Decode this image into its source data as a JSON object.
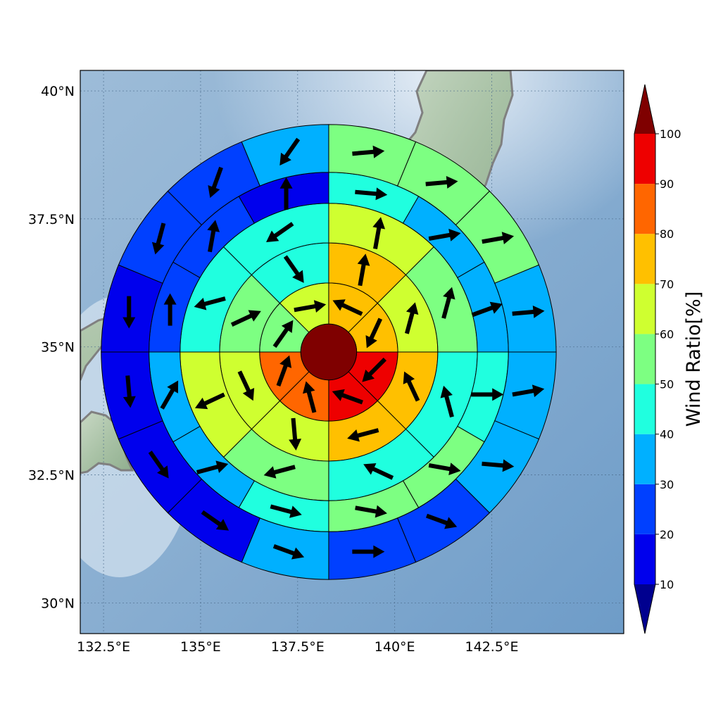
{
  "chart_data": {
    "type": "heatmap",
    "projection": "map",
    "x_ticks": [
      "132.5°E",
      "135°E",
      "137.5°E",
      "140°E",
      "142.5°E"
    ],
    "x_tick_values": [
      132.5,
      135,
      137.5,
      140,
      142.5
    ],
    "y_ticks": [
      "40°N",
      "37.5°N",
      "35°N",
      "32.5°N",
      "30°N"
    ],
    "y_tick_values": [
      40,
      37.5,
      35,
      32.5,
      30
    ],
    "xlim": [
      131.9,
      145.9
    ],
    "ylim": [
      29.4,
      40.4
    ],
    "grid": true,
    "center": {
      "lon": 138.3,
      "lat": 34.9
    },
    "ring_radii_deg": [
      0.72,
      1.78,
      2.81,
      3.83,
      4.63,
      5.86
    ],
    "colorbar": {
      "label": "Wind Ratio[%]",
      "ticks": [
        "10",
        "20",
        "30",
        "40",
        "50",
        "60",
        "70",
        "80",
        "90",
        "100"
      ],
      "bins": [
        10,
        20,
        30,
        40,
        50,
        60,
        70,
        80,
        90,
        100
      ],
      "colors": [
        "#00008f",
        "#0000ed",
        "#0040ff",
        "#00b0ff",
        "#20ffdf",
        "#7dff82",
        "#cfff30",
        "#ffc000",
        "#ff6600",
        "#ee0000",
        "#7f0000"
      ],
      "extend": "both",
      "placement": "right"
    },
    "center_value": 100,
    "rings": [
      {
        "sectors": 8,
        "values": [
          75,
          75,
          95,
          95,
          85,
          85,
          55,
          65
        ],
        "directions": [
          295,
          205,
          225,
          290,
          345,
          20,
          35,
          80
        ]
      },
      {
        "sectors": 8,
        "values": [
          75,
          65,
          75,
          75,
          65,
          65,
          55,
          45
        ],
        "directions": [
          10,
          15,
          335,
          255,
          175,
          155,
          65,
          145
        ]
      },
      {
        "sectors": 8,
        "values": [
          65,
          55,
          45,
          45,
          55,
          65,
          45,
          45
        ],
        "directions": [
          10,
          15,
          345,
          295,
          255,
          245,
          255,
          235
        ]
      },
      {
        "sectors": 12,
        "values": [
          45,
          35,
          35,
          45,
          55,
          55,
          45,
          35,
          35,
          25,
          25,
          15
        ],
        "directions": [
          95,
          80,
          70,
          90,
          100,
          100,
          105,
          75,
          30,
          0,
          10,
          0
        ]
      },
      {
        "sectors": 16,
        "values": [
          55,
          55,
          55,
          35,
          35,
          35,
          25,
          25,
          35,
          15,
          15,
          15,
          15,
          25,
          25,
          35
        ],
        "directions": [
          85,
          85,
          80,
          85,
          80,
          95,
          110,
          90,
          110,
          125,
          145,
          175,
          180,
          195,
          200,
          215
        ]
      },
      {
        "sectors": 16,
        "values": [
          45,
          45,
          65,
          25,
          25,
          15,
          15,
          15,
          5,
          25,
          25,
          25,
          35,
          45,
          45,
          45
        ],
        "directions": [
          75,
          80,
          95,
          100,
          95,
          110,
          55,
          55,
          80,
          85,
          95,
          195,
          210,
          190,
          165,
          155
        ]
      }
    ]
  }
}
